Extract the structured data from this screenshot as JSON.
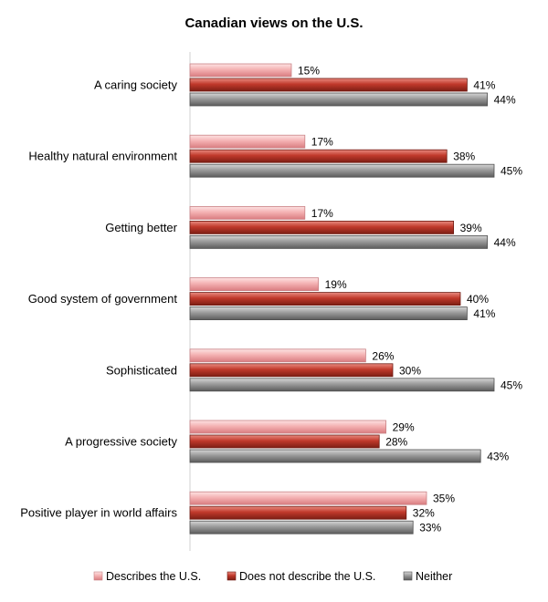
{
  "chart_data": {
    "type": "bar",
    "orientation": "horizontal",
    "title": "Canadian views on the U.S.",
    "categories": [
      "A caring society",
      "Healthy natural environment",
      "Getting better",
      "Good system of government",
      "Sophisticated",
      "A progressive society",
      "Positive player in world affairs"
    ],
    "series": [
      {
        "name": "Describes the U.S.",
        "color": "#f2a9ab",
        "values": [
          15,
          17,
          17,
          19,
          26,
          29,
          35
        ]
      },
      {
        "name": "Does not describe the U.S.",
        "color": "#c0392b",
        "values": [
          41,
          38,
          39,
          40,
          30,
          28,
          32
        ]
      },
      {
        "name": "Neither",
        "color": "#8a8a8a",
        "values": [
          44,
          45,
          44,
          41,
          45,
          43,
          33
        ]
      }
    ],
    "value_suffix": "%",
    "xlim": [
      0,
      50
    ],
    "grid": false,
    "legend_position": "bottom"
  }
}
